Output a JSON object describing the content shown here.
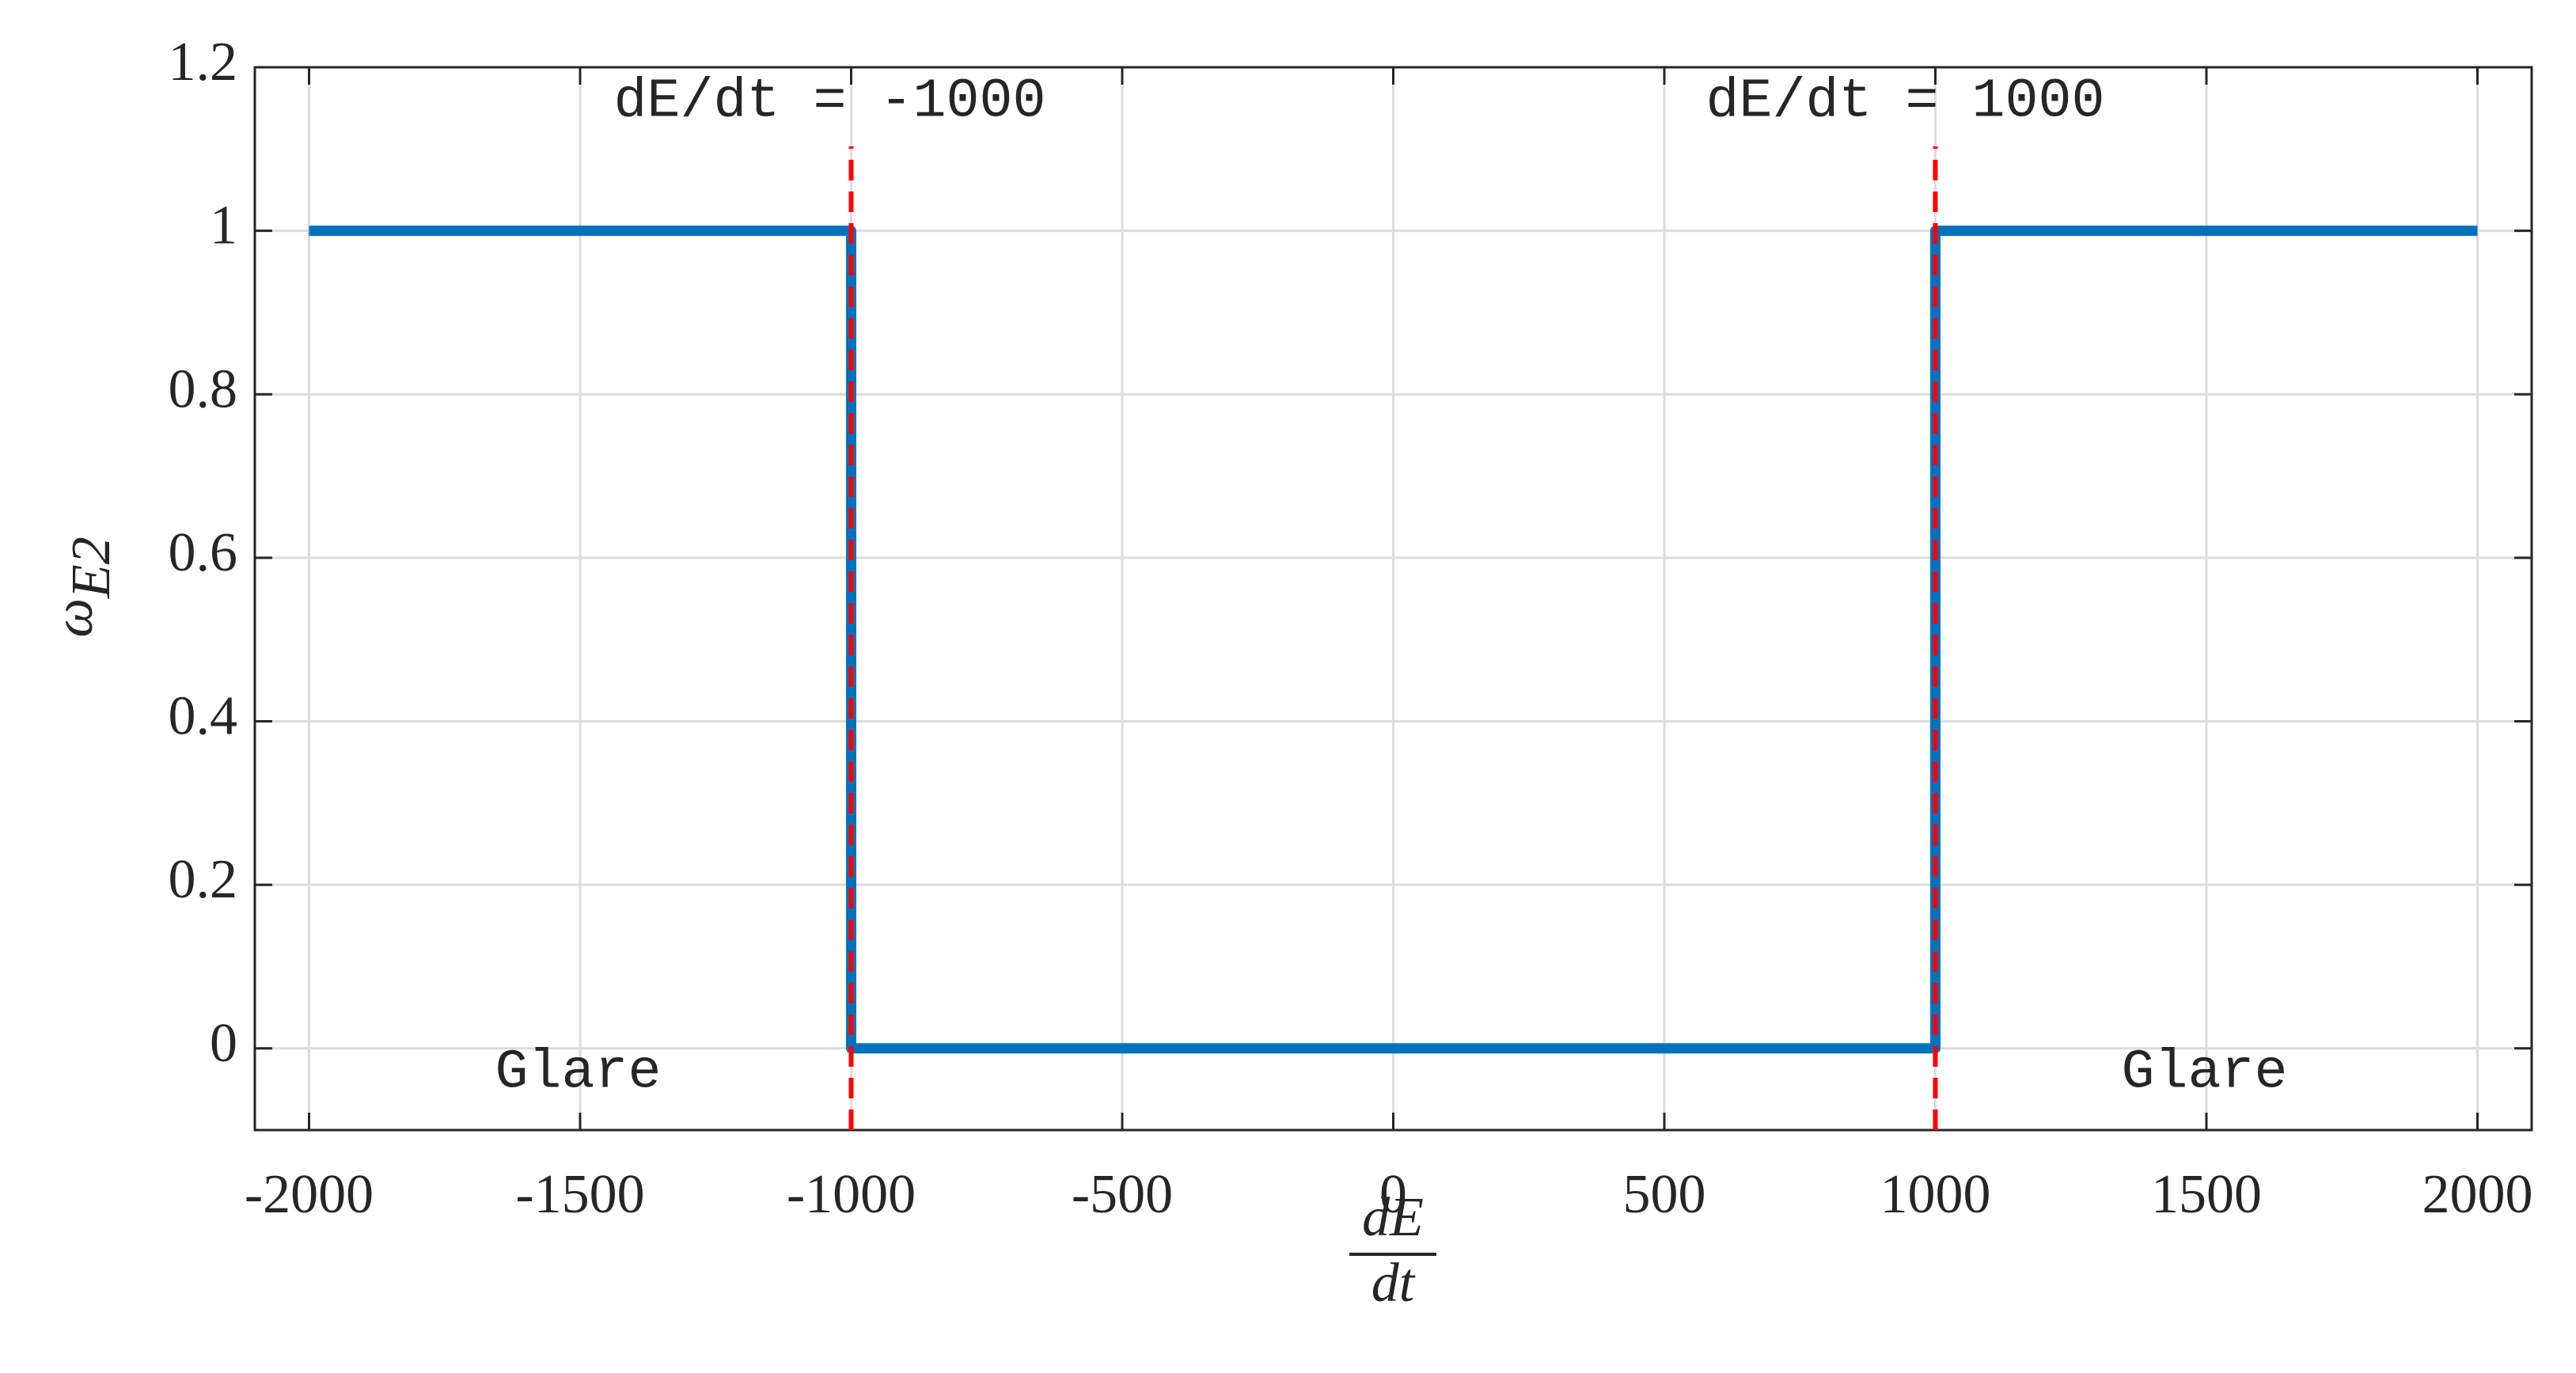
{
  "chart_data": {
    "type": "line",
    "x": [
      -2000,
      -1000,
      -1000,
      1000,
      1000,
      2000
    ],
    "series": [
      {
        "color": "#0072bd",
        "values": [
          1,
          1,
          0,
          0,
          1,
          1
        ]
      }
    ],
    "xlim": [
      -2100,
      2100
    ],
    "xticks": [
      -2000,
      -1500,
      -1000,
      -500,
      0,
      500,
      1000,
      1500,
      2000
    ],
    "ylim": [
      -0.1,
      1.2
    ],
    "yticks": [
      0,
      0.2,
      0.4,
      0.6,
      0.8,
      1,
      1.2
    ],
    "grid": true,
    "xlabel": {
      "numerator": "dE",
      "denominator": "dt"
    },
    "ylabel": {
      "symbol": "ω",
      "subscript": "E2"
    },
    "vlines": [
      {
        "x": -1000,
        "color": "#ff0000"
      },
      {
        "x": 1000,
        "color": "#ff0000"
      }
    ],
    "annotations": [
      "dE/dt = -1000",
      "dE/dt = 1000",
      "Glare",
      "Glare"
    ]
  }
}
